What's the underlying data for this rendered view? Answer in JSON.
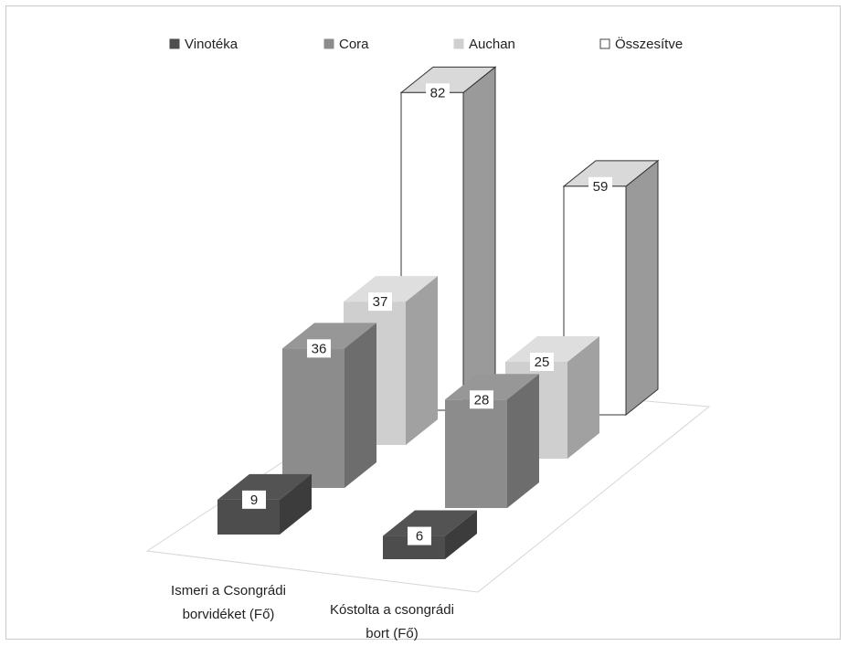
{
  "chart_data": {
    "type": "bar",
    "categories": [
      [
        "Ismeri a Csongrádi",
        "borvidéket (Fő)"
      ],
      [
        "Kóstolta a csongrádi",
        "bort (Fő)"
      ]
    ],
    "series": [
      {
        "name": "Vinotéka",
        "values": [
          9,
          6
        ],
        "color": "#4d4d4d"
      },
      {
        "name": "Cora",
        "values": [
          36,
          28
        ],
        "color": "#8c8c8c"
      },
      {
        "name": "Auchan",
        "values": [
          37,
          25
        ],
        "color": "#cfcfcf"
      },
      {
        "name": "Összesítve",
        "values": [
          82,
          59
        ],
        "color": "#ffffff"
      }
    ],
    "legend_position": "top",
    "projection": "3d-perspective"
  }
}
